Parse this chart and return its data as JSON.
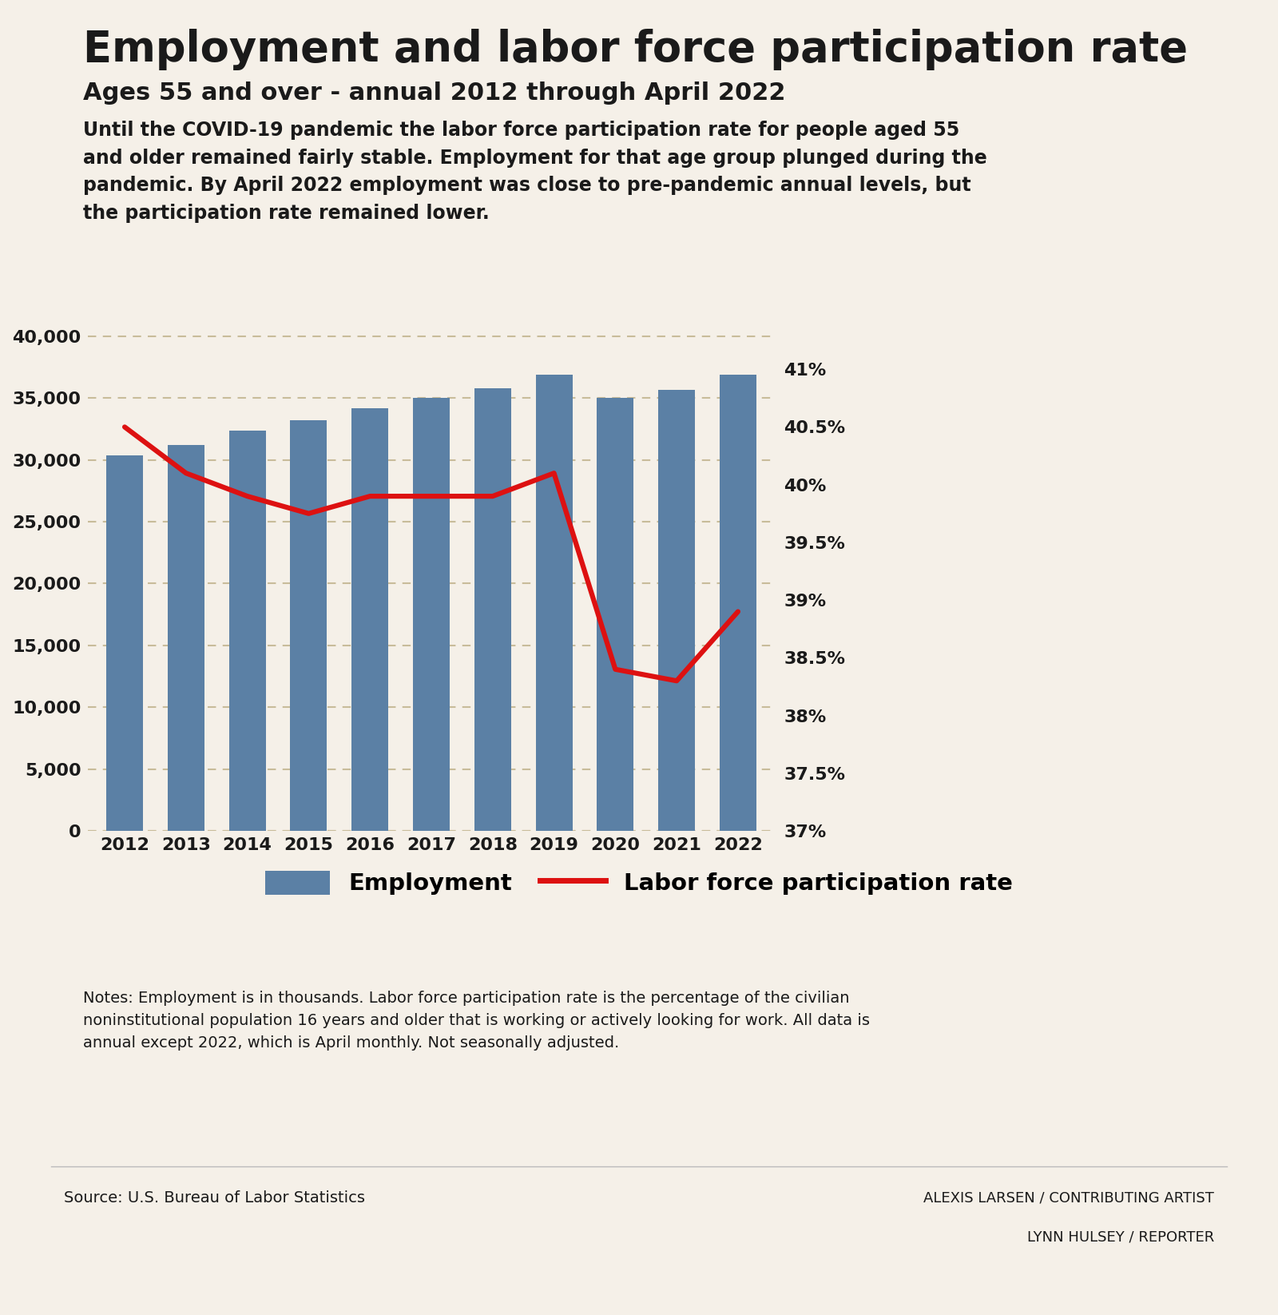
{
  "title": "Employment and labor force participation rate",
  "subtitle": "Ages 55 and over - annual 2012 through April 2022",
  "description": "Until the COVID-19 pandemic the labor force participation rate for people aged 55\nand older remained fairly stable. Employment for that age group plunged during the\npandemic. By April 2022 employment was close to pre-pandemic annual levels, but\nthe participation rate remained lower.",
  "years": [
    2012,
    2013,
    2014,
    2015,
    2016,
    2017,
    2018,
    2019,
    2020,
    2021,
    2022
  ],
  "employment": [
    30400,
    31200,
    32400,
    33200,
    34200,
    35000,
    35800,
    36900,
    35000,
    35700,
    36900
  ],
  "participation_rate": [
    40.5,
    40.1,
    39.9,
    39.75,
    39.9,
    39.9,
    39.9,
    40.1,
    38.4,
    38.3,
    38.9
  ],
  "bar_color": "#5b80a5",
  "line_color": "#dd1111",
  "background_color": "#f5f0e8",
  "left_ylim": [
    0,
    42000
  ],
  "left_yticks": [
    0,
    5000,
    10000,
    15000,
    20000,
    25000,
    30000,
    35000,
    40000
  ],
  "right_ylim": [
    37.0,
    41.5
  ],
  "right_yticks": [
    37.0,
    37.5,
    38.0,
    38.5,
    39.0,
    39.5,
    40.0,
    40.5,
    41.0
  ],
  "right_yticklabels": [
    "37%",
    "37.5%",
    "38%",
    "38.5%",
    "39%",
    "39.5%",
    "40%",
    "40.5%",
    "41%"
  ],
  "notes": "Notes: Employment is in thousands. Labor force participation rate is the percentage of the civilian\nnoninstitutional population 16 years and older that is working or actively looking for work. All data is\nannual except 2022, which is April monthly. Not seasonally adjusted.",
  "source": "Source: U.S. Bureau of Labor Statistics",
  "credit1": "ALEXIS LARSEN / CONTRIBUTING ARTIST",
  "credit2": "LYNN HULSEY / REPORTER",
  "title_color": "#1a1a1a",
  "text_color": "#1a1a1a",
  "grid_color": "#c8bc9a",
  "legend_employment": "Employment",
  "legend_participation": "Labor force participation rate",
  "title_fontsize": 38,
  "subtitle_fontsize": 22,
  "desc_fontsize": 17,
  "tick_fontsize": 16,
  "legend_fontsize": 21,
  "notes_fontsize": 14,
  "source_fontsize": 14,
  "credit_fontsize": 13
}
